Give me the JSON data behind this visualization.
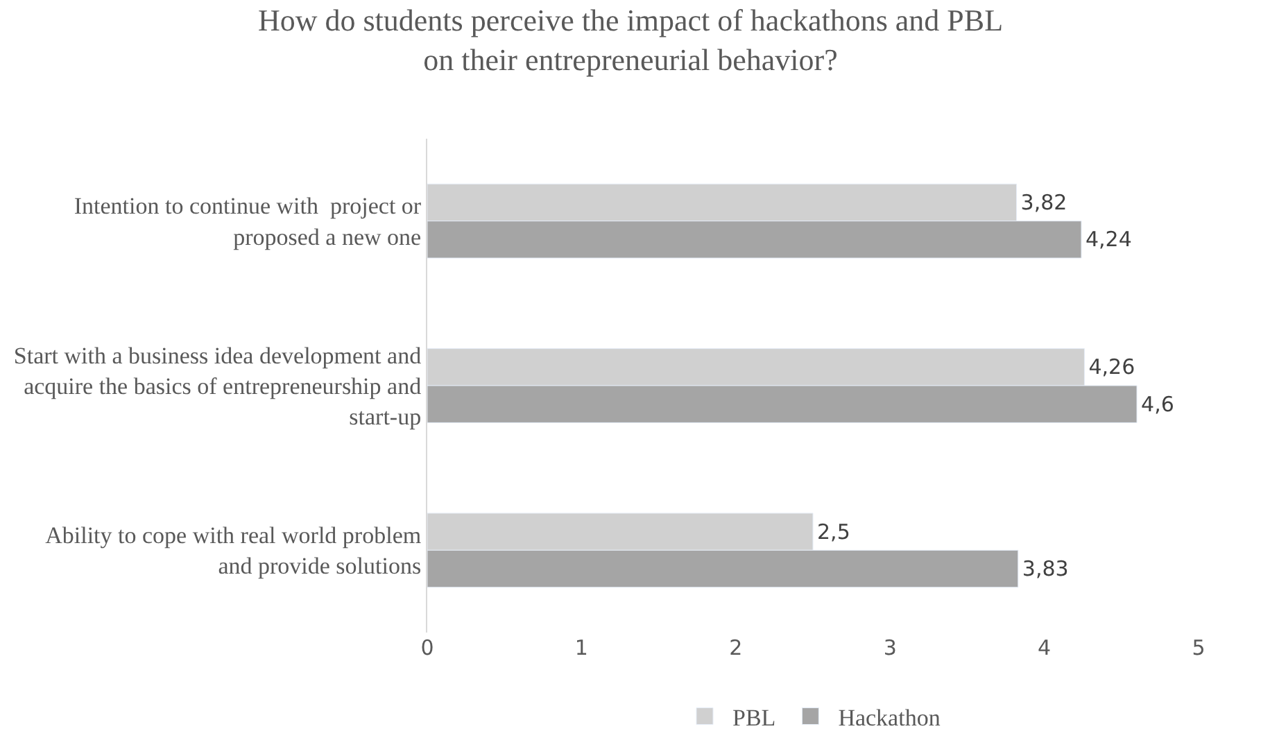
{
  "chart_data": {
    "type": "bar",
    "orientation": "horizontal",
    "title": "How do students perceive the impact of hackathons and PBL on their entrepreneurial behavior?",
    "categories": [
      "Intention to continue with  project or proposed a new one",
      "Start with a business idea development and acquire the basics of entrepreneurship and start-up",
      "Ability to cope with real world problem and provide solutions"
    ],
    "series": [
      {
        "name": "PBL",
        "color": "#d0d0d0",
        "values": [
          3.82,
          4.26,
          2.5
        ],
        "value_labels": [
          "3,82",
          "4,26",
          "2,5"
        ]
      },
      {
        "name": "Hackathon",
        "color": "#a5a5a5",
        "values": [
          4.24,
          4.6,
          3.83
        ],
        "value_labels": [
          "4,24",
          "4,6",
          "3,83"
        ]
      }
    ],
    "xlim": [
      0,
      5
    ],
    "xticks": [
      0,
      1,
      2,
      3,
      4,
      5
    ],
    "legend": "bottom"
  }
}
